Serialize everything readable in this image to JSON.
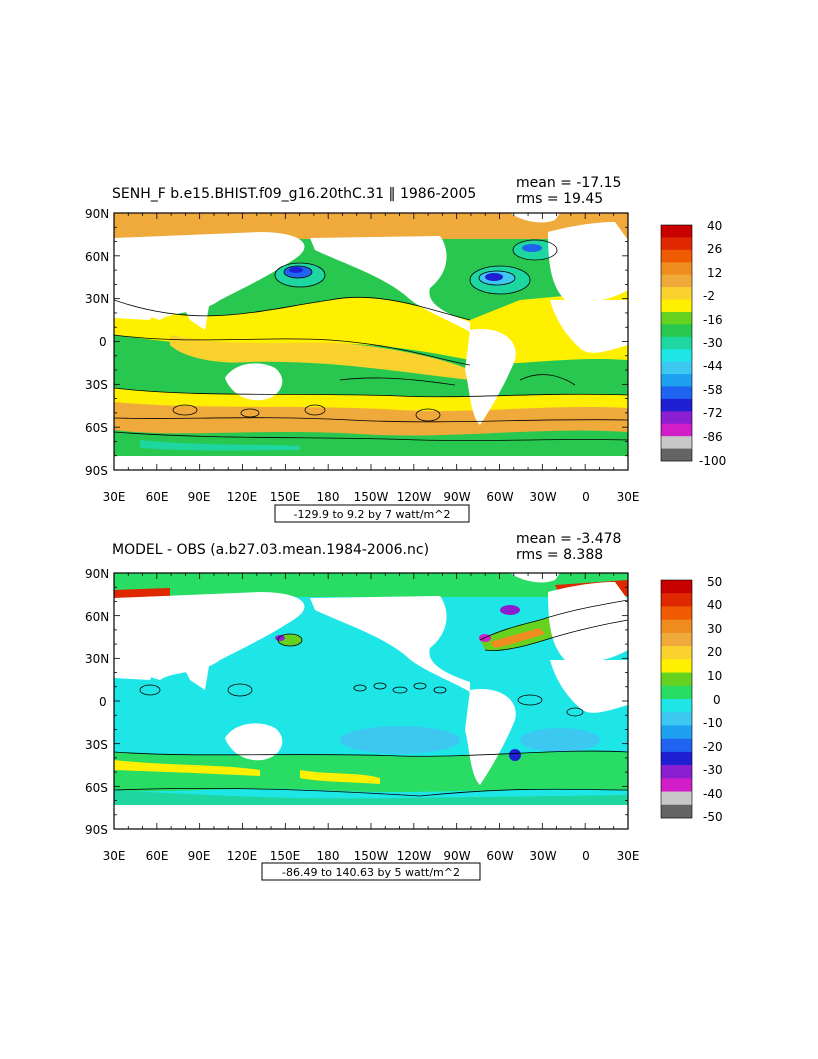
{
  "panels": [
    {
      "title": "SENH_F b.e15.BHIST.f09_g16.20thC.31 ‖ 1986-2005",
      "stats": {
        "mean": "mean = -17.15",
        "rms": "rms = 19.45"
      },
      "lat_labels": [
        "90N",
        "60N",
        "30N",
        "0",
        "30S",
        "60S",
        "90S"
      ],
      "lon_labels": [
        "30E",
        "60E",
        "90E",
        "120E",
        "150E",
        "180",
        "150W",
        "120W",
        "90W",
        "60W",
        "30W",
        "0",
        "30E"
      ],
      "range_label": "-129.9 to 9.2 by 7 watt/m^2",
      "colorbar": {
        "labels": [
          "40",
          "26",
          "12",
          "-2",
          "-16",
          "-30",
          "-44",
          "-58",
          "-72",
          "-86",
          "-100"
        ],
        "colors": [
          "#c80000",
          "#e02800",
          "#f05a00",
          "#f08c1e",
          "#f0aa3c",
          "#fad22d",
          "#fff000",
          "#64d21e",
          "#28c850",
          "#1ed7a0",
          "#1ee6e6",
          "#3cc8f0",
          "#1ea0f0",
          "#1e64f0",
          "#1e1ed2",
          "#8c1ed2",
          "#d21ec8",
          "#c8c8c8",
          "#646464"
        ]
      }
    },
    {
      "title": "MODEL - OBS (a.b27.03.mean.1984-2006.nc)",
      "stats": {
        "mean": "mean = -3.478",
        "rms": "rms = 8.388"
      },
      "lat_labels": [
        "90N",
        "60N",
        "30N",
        "0",
        "30S",
        "60S",
        "90S"
      ],
      "lon_labels": [
        "30E",
        "60E",
        "90E",
        "120E",
        "150E",
        "180",
        "150W",
        "120W",
        "90W",
        "60W",
        "30W",
        "0",
        "30E"
      ],
      "range_label": "-86.49 to 140.63 by 5 watt/m^2",
      "colorbar": {
        "labels": [
          "50",
          "40",
          "30",
          "20",
          "10",
          "0",
          "-10",
          "-20",
          "-30",
          "-40",
          "-50"
        ],
        "colors": [
          "#c80000",
          "#e02800",
          "#f05a00",
          "#f08c1e",
          "#f0aa3c",
          "#fad22d",
          "#fff000",
          "#64d21e",
          "#28dc64",
          "#1ee6e6",
          "#3cc8f0",
          "#1ea0f0",
          "#1e64f0",
          "#1e1ed2",
          "#8c1ed2",
          "#d21ec8",
          "#c8c8c8",
          "#646464"
        ]
      }
    }
  ]
}
